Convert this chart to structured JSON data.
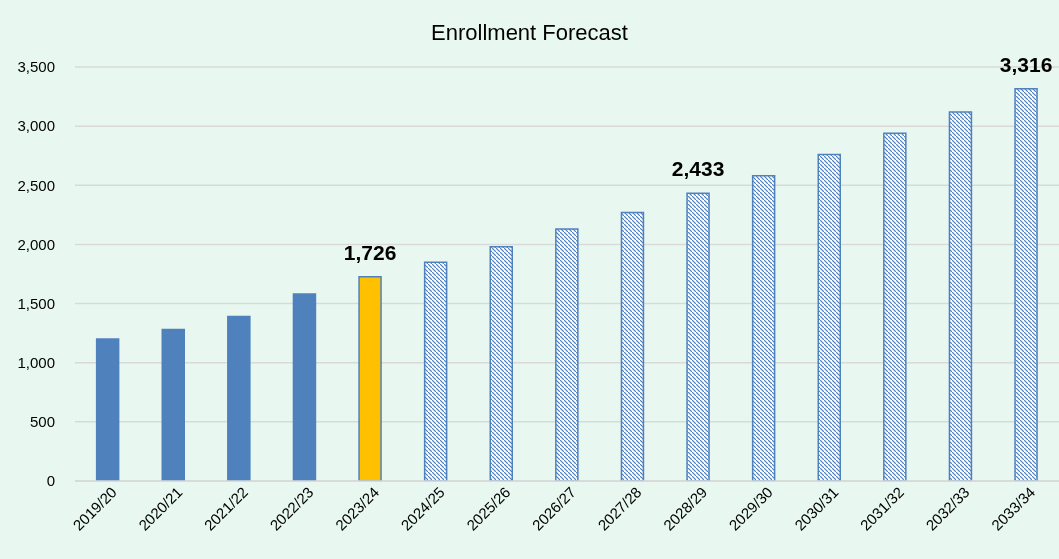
{
  "chart_data": {
    "type": "bar",
    "title": "Enrollment Forecast",
    "categories": [
      "2019/20",
      "2020/21",
      "2021/22",
      "2022/23",
      "2023/24",
      "2024/25",
      "2025/26",
      "2026/27",
      "2027/28",
      "2028/29",
      "2029/30",
      "2030/31",
      "2031/32",
      "2032/33",
      "2033/34"
    ],
    "stacked": true,
    "series": [
      {
        "color": "#4f81bd",
        "colors": [
          "#4f81bd",
          "#4f81bd",
          "#4f81bd",
          "#4f81bd",
          "#ffc000",
          null,
          null,
          null,
          null,
          null,
          null,
          null,
          null,
          null,
          null
        ],
        "values": [
          1200,
          1280,
          1390,
          1580,
          1726,
          null,
          null,
          null,
          null,
          null,
          null,
          null,
          null,
          null,
          null
        ],
        "value_labels": [
          null,
          null,
          null,
          null,
          "1,726",
          null,
          null,
          null,
          null,
          null,
          null,
          null,
          null,
          null,
          null
        ]
      },
      {
        "type": "bar",
        "color": "#4f81bd",
        "values": [
          null,
          null,
          null,
          null,
          null,
          1850,
          1980,
          2130,
          2270,
          2433,
          2580,
          2760,
          2940,
          3120,
          3316
        ],
        "value_labels": [
          null,
          null,
          null,
          null,
          null,
          null,
          null,
          null,
          null,
          "2,433",
          null,
          null,
          null,
          null,
          "3,316"
        ]
      }
    ],
    "ylim": [
      0,
      3500
    ],
    "yticks": [
      0,
      500,
      {
        "value": 1000,
        "label": "1,000"
      },
      {
        "value": 1500,
        "label": "1,500"
      },
      {
        "value": 2000,
        "label": "2,000"
      },
      {
        "value": 2500,
        "label": "2,500"
      },
      {
        "value": 3000,
        "label": "3,000"
      },
      {
        "value": 3500,
        "label": "3,500"
      }
    ],
    "grid": "y"
  }
}
